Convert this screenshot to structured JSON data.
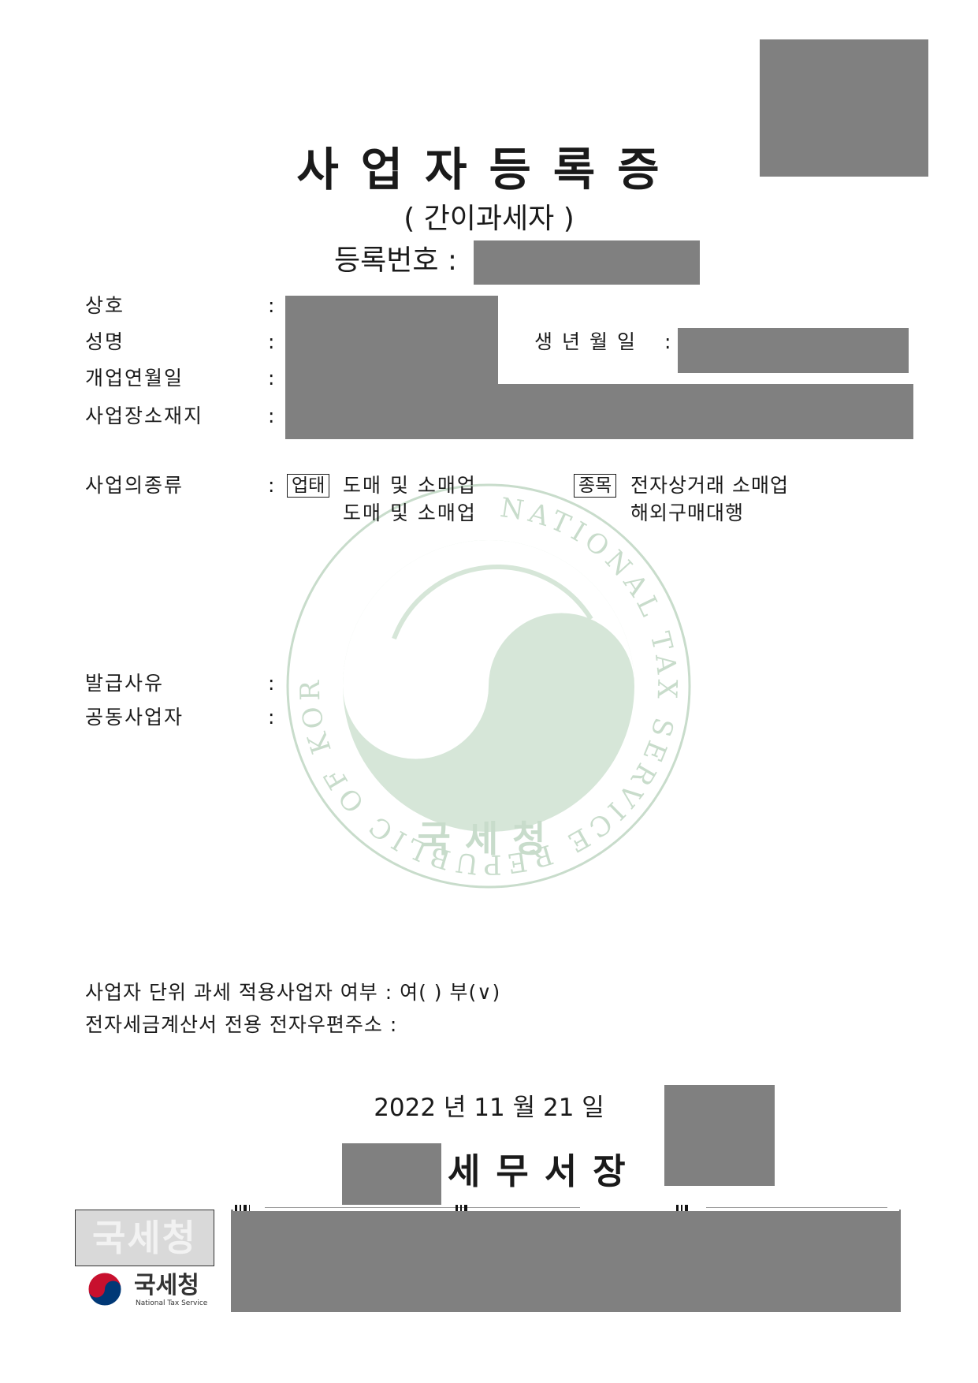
{
  "document": {
    "title": "사업자등록증",
    "subtitle": "( 간이과세자 )",
    "registration_label": "등록번호 :"
  },
  "fields": {
    "trade_name_label": "상호",
    "name_label": "성명",
    "birth_label": "생년월일",
    "open_date_label": "개업연월일",
    "address_label": "사업장소재지",
    "business_type_label": "사업의종류",
    "issue_reason_label": "발급사유",
    "joint_label": "공동사업자",
    "colon": ":"
  },
  "business": {
    "category_tag": "업태",
    "categories": [
      "도매 및 소매업",
      "도매 및 소매업"
    ],
    "item_tag": "종목",
    "items": [
      "전자상거래 소매업",
      "해외구매대행"
    ]
  },
  "footer": {
    "unit_tax_text": "사업자 단위 과세 적용사업자 여부  : 여(   ) 부(∨)",
    "email_text": "전자세금계산서 전용 전자우편주소  :",
    "issue_date": "2022 년  11 월  21 일",
    "office_title": "세무서장"
  },
  "watermark": {
    "ring_text": "NATIONAL TAX SERVICE REPUBLIC OF KOREA",
    "center_text": "국세청"
  },
  "logo": {
    "seal_text": "국세청",
    "word": "국세청",
    "english": "National Tax Service"
  },
  "colors": {
    "watermark_green": "#c8dccb",
    "redaction_gray": "#808080",
    "logo_red": "#c8102e",
    "logo_blue": "#003876"
  }
}
